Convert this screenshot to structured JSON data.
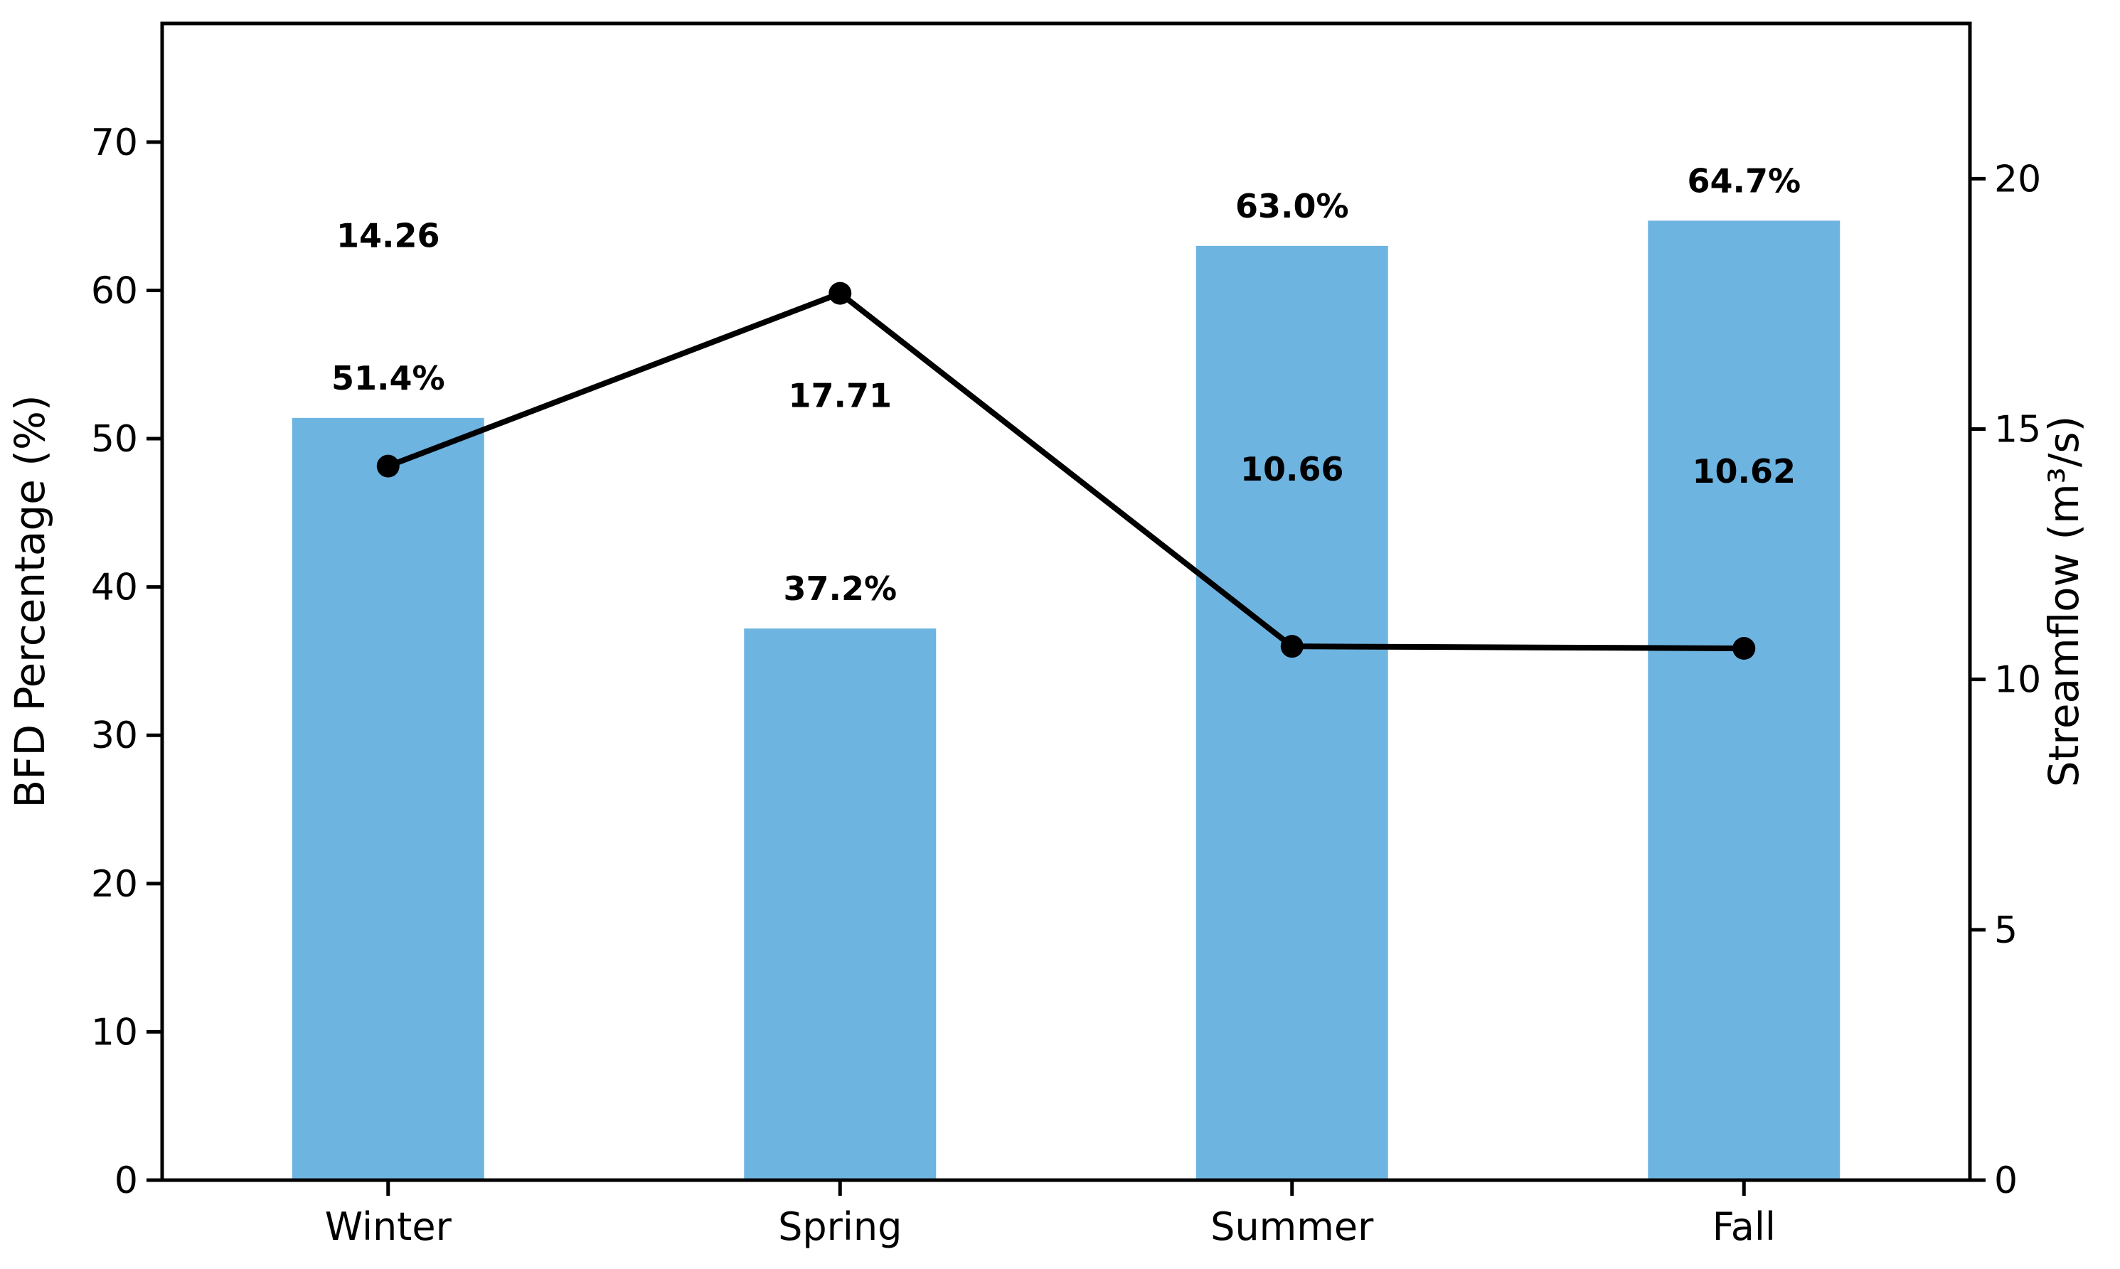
{
  "chart_data": {
    "type": "bar",
    "subtype": "dual-axis bar+line",
    "categories": [
      "Winter",
      "Spring",
      "Summer",
      "Fall"
    ],
    "series": [
      {
        "name": "BFD Percentage",
        "type": "bar",
        "axis": "left",
        "values": [
          51.4,
          37.2,
          63.0,
          64.7
        ],
        "data_labels": [
          "51.4%",
          "37.2%",
          "63.0%",
          "64.7%"
        ],
        "color": "#6eb4e1"
      },
      {
        "name": "Streamflow",
        "type": "line",
        "axis": "right",
        "values": [
          14.26,
          17.71,
          10.66,
          10.62
        ],
        "data_labels": [
          "14.26",
          "17.71",
          "10.66",
          "10.62"
        ],
        "label_side": [
          "high-above",
          "below",
          "above",
          "above"
        ],
        "color": "#000000"
      }
    ],
    "left_axis": {
      "label": "BFD Percentage (%)",
      "ticks": [
        0,
        10,
        20,
        30,
        40,
        50,
        60,
        70
      ],
      "range": [
        0,
        78
      ]
    },
    "right_axis": {
      "label": "Streamflow (m³/s)",
      "ticks": [
        0,
        5,
        10,
        15,
        20
      ],
      "range": [
        0,
        23.1
      ]
    },
    "xlabel": "",
    "title": "",
    "grid": false,
    "legend_position": "none",
    "colors": {
      "bar_fill": "#6eb4e1",
      "line": "#000000",
      "spine": "#000000",
      "background": "#ffffff"
    }
  }
}
